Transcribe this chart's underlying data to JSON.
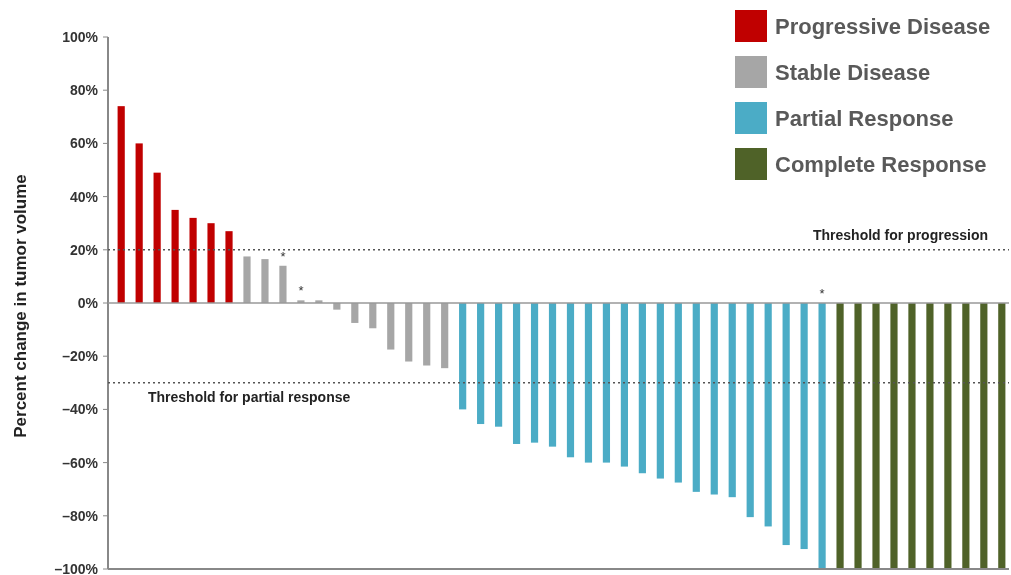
{
  "chart_data": {
    "type": "bar",
    "ylabel": "Percent change in tumor volume",
    "categories": [
      null,
      null,
      null,
      null,
      null,
      null,
      null,
      null,
      null,
      null,
      null,
      null,
      null,
      null,
      null,
      null,
      null,
      null,
      null,
      null,
      null,
      null,
      null,
      null,
      null,
      null,
      null,
      null,
      null,
      null,
      null,
      null,
      null,
      null,
      null,
      null,
      null,
      null,
      null,
      null,
      null,
      null,
      null,
      null,
      null,
      null,
      null,
      null,
      null,
      null
    ],
    "series": [
      {
        "name": "Progressive Disease",
        "color": "#c00000",
        "values": [
          74,
          60,
          49,
          35,
          32,
          30,
          27,
          null,
          null,
          null,
          null,
          null,
          null,
          null,
          null,
          null,
          null,
          null,
          null,
          null,
          null,
          null,
          null,
          null,
          null,
          null,
          null,
          null,
          null,
          null,
          null,
          null,
          null,
          null,
          null,
          null,
          null,
          null,
          null,
          null,
          null,
          null,
          null,
          null,
          null,
          null,
          null,
          null,
          null,
          null
        ]
      },
      {
        "name": "Stable Disease",
        "color": "#a6a6a6",
        "values": [
          null,
          null,
          null,
          null,
          null,
          null,
          null,
          17.5,
          16.5,
          14,
          1,
          1,
          -2.5,
          -7.5,
          -9.5,
          -17.5,
          -22,
          -23.5,
          -24.5,
          null,
          null,
          null,
          null,
          null,
          null,
          null,
          null,
          null,
          null,
          null,
          null,
          null,
          null,
          null,
          null,
          null,
          null,
          null,
          null,
          null,
          null,
          null,
          null,
          null,
          null,
          null,
          null,
          null,
          null,
          null
        ],
        "value_labels": [
          null,
          null,
          null,
          null,
          null,
          null,
          null,
          null,
          null,
          "*",
          "*",
          null,
          null,
          null,
          null,
          null,
          null,
          null,
          null,
          null,
          null,
          null,
          null,
          null,
          null,
          null,
          null,
          null,
          null,
          null,
          null,
          null,
          null,
          null,
          null,
          null,
          null,
          null,
          null,
          null,
          null,
          null,
          null,
          null,
          null,
          null,
          null,
          null,
          null,
          null
        ]
      },
      {
        "name": "Partial Response",
        "color": "#4bacc6",
        "values": [
          null,
          null,
          null,
          null,
          null,
          null,
          null,
          null,
          null,
          null,
          null,
          null,
          null,
          null,
          null,
          null,
          null,
          null,
          null,
          -40,
          -45.5,
          -46.5,
          -53,
          -52.5,
          -54,
          -58,
          -60,
          -60,
          -61.5,
          -64,
          -66,
          -67.5,
          -71,
          -72,
          -73,
          -80.5,
          -84,
          -91,
          -92.5,
          -100,
          null,
          null,
          null,
          null,
          null,
          null,
          null,
          null,
          null,
          null
        ],
        "value_labels": [
          null,
          null,
          null,
          null,
          null,
          null,
          null,
          null,
          null,
          null,
          null,
          null,
          null,
          null,
          null,
          null,
          null,
          null,
          null,
          null,
          null,
          null,
          null,
          null,
          null,
          null,
          null,
          null,
          null,
          null,
          null,
          null,
          null,
          null,
          null,
          null,
          null,
          null,
          null,
          "*",
          null,
          null,
          null,
          null,
          null,
          null,
          null,
          null,
          null,
          null
        ]
      },
      {
        "name": "Complete Response",
        "color": "#4f6228",
        "values": [
          null,
          null,
          null,
          null,
          null,
          null,
          null,
          null,
          null,
          null,
          null,
          null,
          null,
          null,
          null,
          null,
          null,
          null,
          null,
          null,
          null,
          null,
          null,
          null,
          null,
          null,
          null,
          null,
          null,
          null,
          null,
          null,
          null,
          null,
          null,
          null,
          null,
          null,
          null,
          null,
          -100,
          -100,
          -100,
          -100,
          -100,
          -100,
          -100,
          -100,
          -100,
          -100
        ]
      }
    ],
    "ylim": [
      -100,
      100
    ],
    "yticks": [
      {
        "value": -100,
        "label": "–100%"
      },
      {
        "value": -80,
        "label": "–80%"
      },
      {
        "value": -60,
        "label": "–60%"
      },
      {
        "value": -40,
        "label": "–40%"
      },
      {
        "value": -20,
        "label": "–20%"
      },
      {
        "value": 0,
        "label": "0%"
      },
      {
        "value": 20,
        "label": "20%"
      },
      {
        "value": 40,
        "label": "40%"
      },
      {
        "value": 60,
        "label": "60%"
      },
      {
        "value": 80,
        "label": "80%"
      },
      {
        "value": 100,
        "label": "100%"
      }
    ],
    "ref_lines": [
      {
        "axis": "y",
        "value": 20,
        "label": "Threshold for progression",
        "line_style": "dotted"
      },
      {
        "axis": "y",
        "value": -30,
        "label": "Threshold for partial response",
        "line_style": "dotted"
      }
    ],
    "legend": "top right",
    "grid": false
  }
}
